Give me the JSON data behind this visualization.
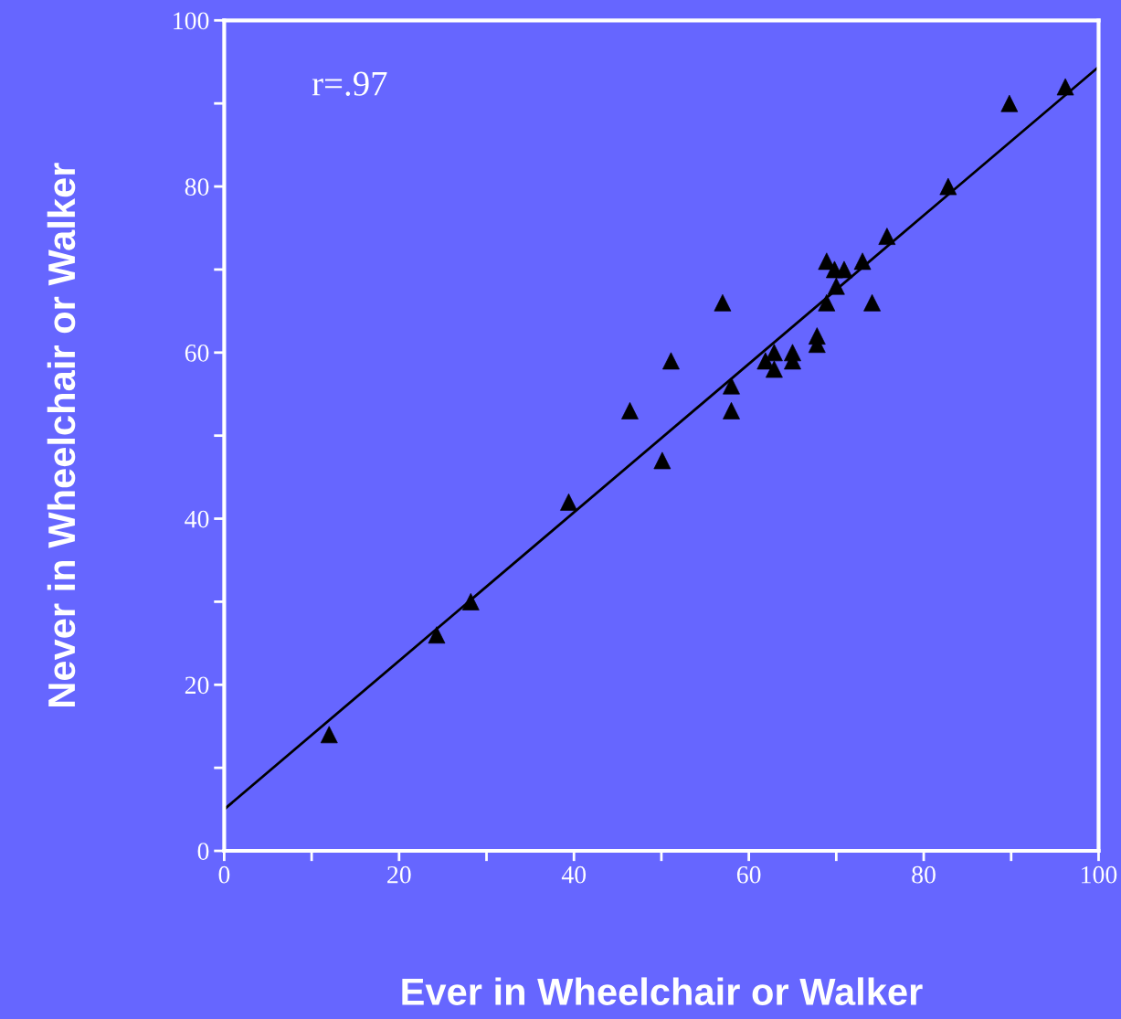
{
  "chart_data": {
    "type": "scatter",
    "xlabel": "Ever in Wheelchair or Walker",
    "ylabel": "Never in Wheelchair or Walker",
    "annotations": [
      "r=.97"
    ],
    "marker": "triangle",
    "grid": false,
    "xlim": [
      0,
      100
    ],
    "ylim": [
      0,
      100
    ],
    "xticks": [
      0,
      {
        "value": 10,
        "label": null
      },
      20,
      {
        "value": 30,
        "label": null
      },
      40,
      {
        "value": 50,
        "label": null
      },
      60,
      {
        "value": 70,
        "label": null
      },
      80,
      {
        "value": 90,
        "label": null
      },
      100
    ],
    "yticks": [
      0,
      {
        "value": 10,
        "label": null
      },
      20,
      {
        "value": 30,
        "label": null
      },
      40,
      {
        "value": 50,
        "label": null
      },
      60,
      {
        "value": 70,
        "label": null
      },
      80,
      {
        "value": 90,
        "label": null
      },
      100
    ],
    "series": [
      {
        "color": "#000000",
        "x": [
          12,
          24.3,
          28.2,
          39.4,
          46.4,
          50.1,
          51.1,
          57,
          58,
          58,
          61.9,
          62.9,
          62.9,
          65,
          65,
          67.8,
          67.8,
          68.9,
          68.9,
          69.8,
          70,
          70.9,
          73,
          74.1,
          75.8,
          82.8,
          89.8,
          96.2
        ],
        "values": [
          14,
          26,
          30,
          42,
          53,
          47,
          59,
          66,
          56,
          53,
          59,
          60,
          58,
          60,
          59,
          62,
          61,
          71,
          66,
          70,
          68,
          70,
          71,
          66,
          74,
          80,
          90,
          92
        ]
      },
      {
        "type": "line",
        "color": "#000000",
        "marker": "none",
        "x": [
          0,
          100
        ],
        "values": [
          5,
          94.4
        ]
      }
    ]
  }
}
